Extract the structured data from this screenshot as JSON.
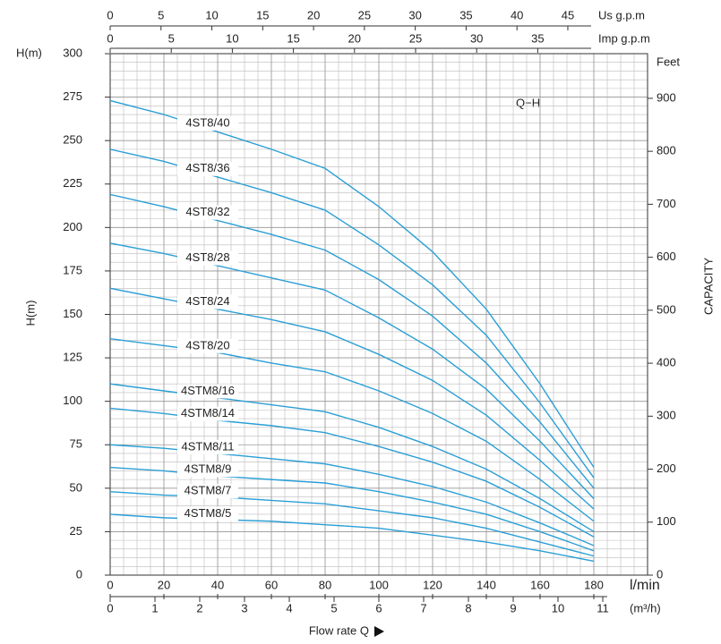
{
  "chart_data": {
    "type": "line",
    "ylabel_top": "H(m)",
    "ylabel": "H(m)",
    "y2label_top": "Feet",
    "y2label": "CAPACITY",
    "xunit": "l/min",
    "xlabel": "Flow rate Q",
    "annotation": "Q−H",
    "color": "#2a9fd6",
    "grid": true,
    "x": [
      0,
      20,
      40,
      60,
      80,
      100,
      120,
      140,
      160,
      180
    ],
    "xlim": [
      0,
      200
    ],
    "xticks": [
      0,
      20,
      40,
      60,
      80,
      100,
      120,
      140,
      160,
      180
    ],
    "ylim": [
      0,
      300
    ],
    "yticks": [
      0,
      25,
      50,
      75,
      100,
      125,
      150,
      175,
      200,
      225,
      250,
      275,
      300
    ],
    "y2lim": [
      0,
      984.25
    ],
    "y2ticks": [
      0,
      100,
      200,
      300,
      400,
      500,
      600,
      700,
      800,
      900
    ],
    "top_axes": [
      {
        "label": "Us g.p.m",
        "lim": [
          0,
          52.84
        ],
        "ticks": [
          0,
          5,
          10,
          15,
          20,
          25,
          30,
          35,
          40,
          45
        ]
      },
      {
        "label": "Imp g.p.m",
        "lim": [
          0,
          43.99
        ],
        "ticks": [
          0,
          5,
          10,
          15,
          20,
          25,
          30,
          35
        ]
      }
    ],
    "bottom_axis2": {
      "label": "(m³/h)",
      "lim": [
        0,
        12
      ],
      "ticks": [
        0,
        1,
        2,
        3,
        4,
        5,
        6,
        7,
        8,
        9,
        10,
        11
      ]
    },
    "series": [
      {
        "name": "4ST8/40",
        "values": [
          273,
          265,
          255,
          245,
          234,
          212,
          186,
          153,
          110,
          62
        ]
      },
      {
        "name": "4ST8/36",
        "values": [
          245,
          238,
          229,
          220,
          210,
          190,
          167,
          138,
          99,
          56
        ]
      },
      {
        "name": "4ST8/32",
        "values": [
          219,
          212,
          204,
          196,
          187,
          170,
          149,
          122,
          88,
          50
        ]
      },
      {
        "name": "4ST8/28",
        "values": [
          191,
          185,
          178,
          171,
          164,
          148,
          130,
          107,
          77,
          44
        ]
      },
      {
        "name": "4ST8/24",
        "values": [
          165,
          159,
          153,
          147,
          140,
          127,
          112,
          92,
          66,
          38
        ]
      },
      {
        "name": "4ST8/20",
        "values": [
          136,
          132,
          128,
          122,
          117,
          106,
          93,
          77,
          55,
          31
        ]
      },
      {
        "name": "4STM8/16",
        "values": [
          110,
          106,
          102,
          98,
          94,
          85,
          74,
          61,
          44,
          25
        ]
      },
      {
        "name": "4STM8/14",
        "values": [
          96,
          93,
          89,
          86,
          82,
          74,
          65,
          54,
          39,
          22
        ]
      },
      {
        "name": "4STM8/11",
        "values": [
          75,
          73,
          70,
          67,
          64,
          58,
          51,
          42,
          30,
          17
        ]
      },
      {
        "name": "4STM8/9",
        "values": [
          62,
          60,
          57,
          55,
          53,
          48,
          42,
          35,
          25,
          14
        ]
      },
      {
        "name": "4STM8/7",
        "values": [
          48,
          46,
          45,
          43,
          41,
          37,
          33,
          27,
          19,
          11
        ]
      },
      {
        "name": "4STM8/5",
        "values": [
          35,
          33,
          32,
          31,
          29,
          27,
          23,
          19,
          14,
          8
        ]
      }
    ]
  }
}
